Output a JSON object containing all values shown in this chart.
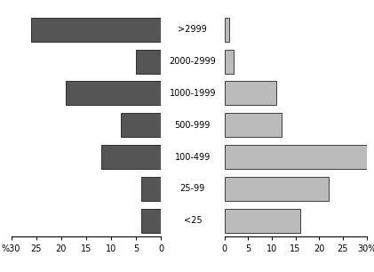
{
  "categories": [
    ">2999",
    "2000-2999",
    "1000-1999",
    "500-999",
    "100-499",
    "25-99",
    "<25"
  ],
  "surface": [
    26,
    5,
    19,
    8,
    12,
    4,
    4
  ],
  "population": [
    1,
    2,
    11,
    12,
    30,
    22,
    16
  ],
  "surface_color": "#555555",
  "population_color": "#bbbbbb",
  "xlim": 30,
  "xticks_left": [
    30,
    25,
    20,
    15,
    10,
    5,
    0
  ],
  "xticks_right": [
    0,
    5,
    10,
    15,
    20,
    25,
    30
  ],
  "xlabels_left": [
    "%30",
    "25",
    "20",
    "15",
    "10",
    "5",
    "0"
  ],
  "xlabels_right": [
    "0",
    "5",
    "10",
    "15",
    "20",
    "25",
    "30%"
  ],
  "background_color": "#ffffff",
  "bar_height": 0.75
}
